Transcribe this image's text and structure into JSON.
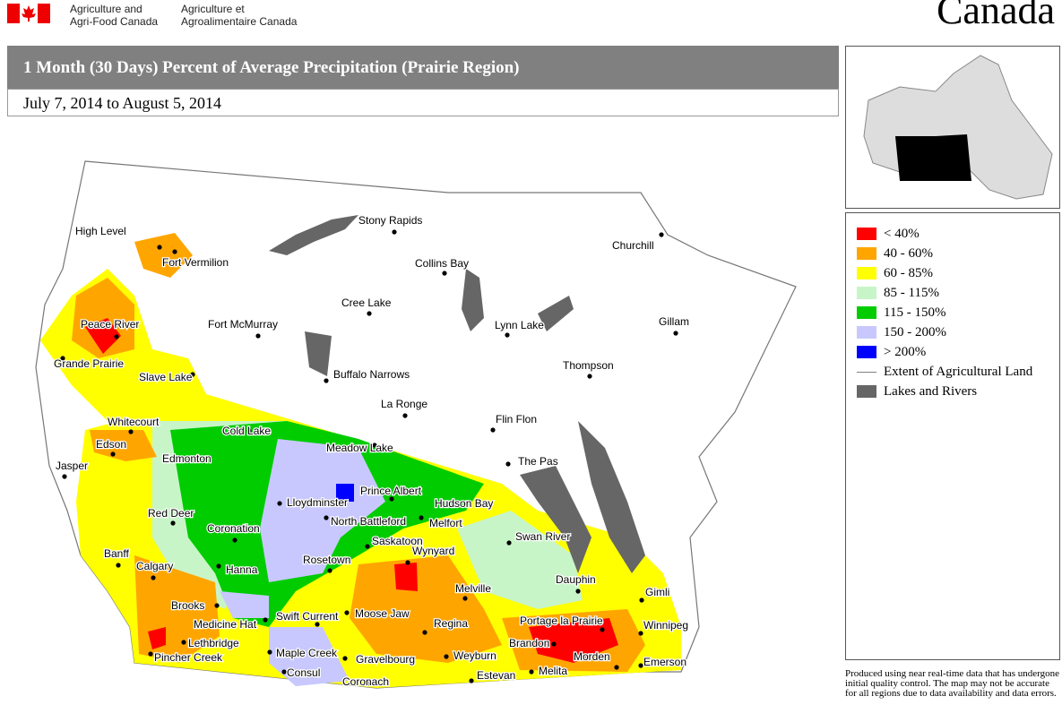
{
  "header": {
    "agency_en": [
      "Agriculture and",
      "Agri-Food Canada"
    ],
    "agency_fr": [
      "Agriculture et",
      "Agroalimentaire Canada"
    ],
    "wordmark": "Canada"
  },
  "title": "1 Month (30 Days) Percent of Average Precipitation  (Prairie Region)",
  "date_range": "July 7, 2014 to August 5, 2014",
  "legend": [
    {
      "label": "< 40%",
      "color": "#ff0000"
    },
    {
      "label": "40 - 60%",
      "color": "#ffa500"
    },
    {
      "label": "60 - 85%",
      "color": "#ffff00"
    },
    {
      "label": "85 - 115%",
      "color": "#c8f5c8"
    },
    {
      "label": "115 - 150%",
      "color": "#00cc00"
    },
    {
      "label": "150 - 200%",
      "color": "#c8c8ff"
    },
    {
      "label": "> 200%",
      "color": "#0000ff"
    },
    {
      "label": "Extent of Agricultural Land",
      "color": "#808080",
      "symbol": "line"
    },
    {
      "label": "Lakes and Rivers",
      "color": "#666666"
    }
  ],
  "cities": [
    "High Level",
    "Fort Vermilion",
    "Peace River",
    "Grande Prairie",
    "Slave Lake",
    "Fort McMurray",
    "Stony Rapids",
    "Collins Bay",
    "Cree Lake",
    "Lynn Lake",
    "Churchill",
    "Gillam",
    "Thompson",
    "Buffalo Narrows",
    "La Ronge",
    "Flin Flon",
    "Whitecourt",
    "Edson",
    "Jasper",
    "Edmonton",
    "Cold Lake",
    "Meadow Lake",
    "The Pas",
    "Prince Albert",
    "Lloydminster",
    "Hudson Bay",
    "Red Deer",
    "North Battleford",
    "Melfort",
    "Coronation",
    "Saskatoon",
    "Swan River",
    "Banff",
    "Wynyard",
    "Calgary",
    "Hanna",
    "Rosetown",
    "Dauphin",
    "Melville",
    "Gimli",
    "Brooks",
    "Moose Jaw",
    "Swift Current",
    "Medicine Hat",
    "Portage la Prairie",
    "Regina",
    "Winnipeg",
    "Lethbridge",
    "Brandon",
    "Maple Creek",
    "Gravelbourg",
    "Weyburn",
    "Morden",
    "Pincher Creek",
    "Emerson",
    "Consul",
    "Estevan",
    "Melita",
    "Coronach"
  ],
  "note": "Produced using near real-time data that has undergone initial quality control.  The map may not be accurate for all regions due to data availability and data errors."
}
